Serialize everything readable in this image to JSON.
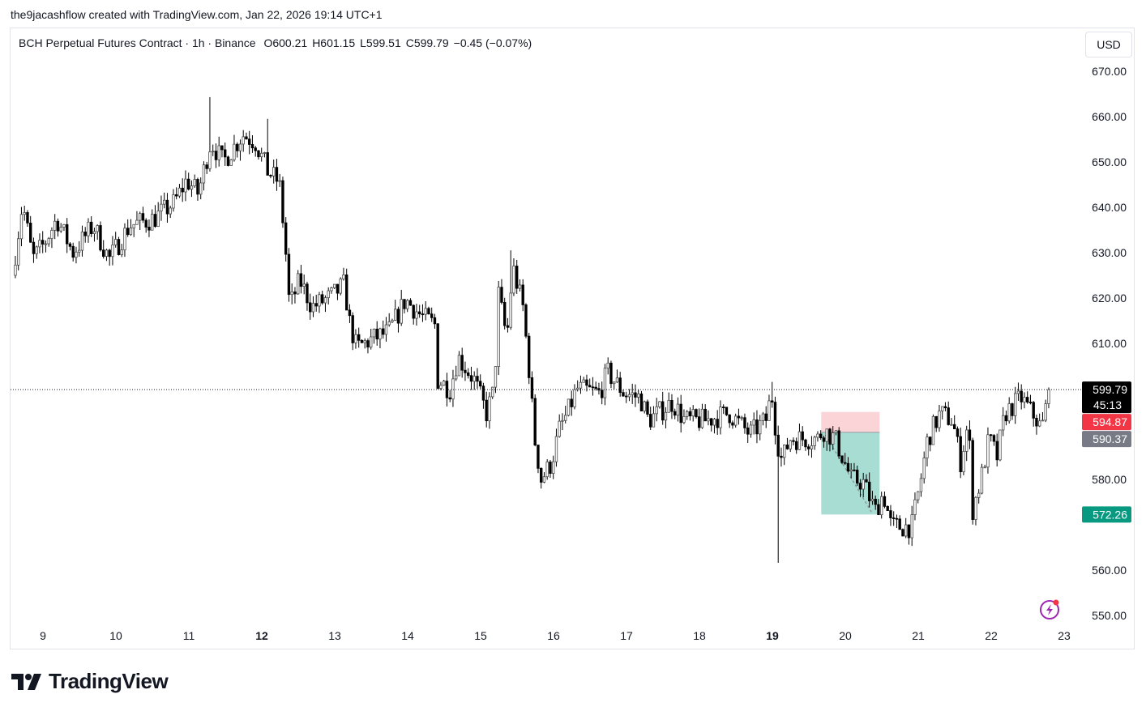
{
  "credit": "the9jacashflow created with TradingView.com, Jan 22, 2026 19:14 UTC+1",
  "legend": {
    "symbol": "BCH Perpetual Futures Contract · 1h · Binance",
    "open": "O600.21",
    "high": "H601.15",
    "low": "L599.51",
    "close": "C599.79",
    "change": "−0.45 (−0.07%)"
  },
  "currency_button": "USD",
  "brand": "TradingView",
  "icons": {
    "alert": "lightning-bolt-icon",
    "logo": "tradingview-logo-icon"
  },
  "chart_data": {
    "type": "candlestick",
    "interval": "1h",
    "x_unit": "day of January 2026",
    "ylim": [
      546,
      676
    ],
    "xlim": [
      8.55,
      23.35
    ],
    "y_ticks": [
      "670.00",
      "660.00",
      "650.00",
      "640.00",
      "630.00",
      "620.00",
      "610.00",
      "580.00",
      "560.00",
      "550.00"
    ],
    "y_tick_values": [
      670,
      660,
      650,
      640,
      630,
      620,
      610,
      580,
      560,
      550
    ],
    "x_ticks": [
      {
        "label": "9",
        "value": 9,
        "bold": false
      },
      {
        "label": "10",
        "value": 10,
        "bold": false
      },
      {
        "label": "11",
        "value": 11,
        "bold": false
      },
      {
        "label": "12",
        "value": 12,
        "bold": true
      },
      {
        "label": "13",
        "value": 13,
        "bold": false
      },
      {
        "label": "14",
        "value": 14,
        "bold": false
      },
      {
        "label": "15",
        "value": 15,
        "bold": false
      },
      {
        "label": "16",
        "value": 16,
        "bold": false
      },
      {
        "label": "17",
        "value": 17,
        "bold": false
      },
      {
        "label": "18",
        "value": 18,
        "bold": false
      },
      {
        "label": "19",
        "value": 19,
        "bold": true
      },
      {
        "label": "20",
        "value": 20,
        "bold": false
      },
      {
        "label": "21",
        "value": 21,
        "bold": false
      },
      {
        "label": "22",
        "value": 22,
        "bold": false
      },
      {
        "label": "23",
        "value": 23,
        "bold": false
      }
    ],
    "grid": false,
    "close_path": [
      [
        8.58,
        625
      ],
      [
        8.72,
        641
      ],
      [
        8.86,
        628.6
      ],
      [
        9.02,
        632
      ],
      [
        9.19,
        637.5
      ],
      [
        9.41,
        630
      ],
      [
        9.69,
        636
      ],
      [
        9.91,
        628.6
      ],
      [
        10.19,
        636
      ],
      [
        10.52,
        637.5
      ],
      [
        10.8,
        641
      ],
      [
        10.97,
        646
      ],
      [
        11.13,
        643
      ],
      [
        11.3,
        654.5
      ],
      [
        11.47,
        650
      ],
      [
        11.74,
        656
      ],
      [
        11.91,
        654.5
      ],
      [
        12.08,
        648
      ],
      [
        12.24,
        645.5
      ],
      [
        12.32,
        632
      ],
      [
        12.38,
        618
      ],
      [
        12.52,
        624
      ],
      [
        12.69,
        618
      ],
      [
        12.97,
        620.5
      ],
      [
        13.13,
        623
      ],
      [
        13.21,
        614
      ],
      [
        13.3,
        609
      ],
      [
        13.52,
        611
      ],
      [
        13.74,
        612.5
      ],
      [
        13.97,
        619.6
      ],
      [
        14.19,
        616
      ],
      [
        14.38,
        614
      ],
      [
        14.41,
        602
      ],
      [
        14.58,
        600
      ],
      [
        14.69,
        607
      ],
      [
        14.91,
        602
      ],
      [
        15.08,
        594.6
      ],
      [
        15.19,
        600
      ],
      [
        15.24,
        621.4
      ],
      [
        15.36,
        611
      ],
      [
        15.44,
        627
      ],
      [
        15.58,
        618
      ],
      [
        15.66,
        605
      ],
      [
        15.74,
        589
      ],
      [
        15.83,
        580
      ],
      [
        15.97,
        583.6
      ],
      [
        16.08,
        591
      ],
      [
        16.19,
        594.6
      ],
      [
        16.32,
        600
      ],
      [
        16.63,
        599
      ],
      [
        16.74,
        603.6
      ],
      [
        16.97,
        599
      ],
      [
        17.19,
        598
      ],
      [
        17.3,
        593
      ],
      [
        17.63,
        597
      ],
      [
        17.8,
        593
      ],
      [
        18.08,
        593
      ],
      [
        18.41,
        594.6
      ],
      [
        18.69,
        590
      ],
      [
        18.91,
        593
      ],
      [
        18.99,
        599
      ],
      [
        19.06,
        589
      ],
      [
        19.13,
        584
      ],
      [
        19.24,
        589
      ],
      [
        19.63,
        589
      ],
      [
        19.69,
        591
      ],
      [
        19.86,
        589
      ],
      [
        19.97,
        584.6
      ],
      [
        20.08,
        580
      ],
      [
        20.24,
        579.5
      ],
      [
        20.41,
        573
      ],
      [
        20.52,
        577
      ],
      [
        20.63,
        569.6
      ],
      [
        20.91,
        569.6
      ],
      [
        21.02,
        578.6
      ],
      [
        21.13,
        589
      ],
      [
        21.3,
        594.6
      ],
      [
        21.47,
        593
      ],
      [
        21.58,
        584
      ],
      [
        21.69,
        593
      ],
      [
        21.74,
        573
      ],
      [
        21.86,
        580
      ],
      [
        21.97,
        589
      ],
      [
        22.08,
        585
      ],
      [
        22.19,
        594.6
      ],
      [
        22.41,
        598
      ],
      [
        22.63,
        593
      ],
      [
        22.69,
        591
      ],
      [
        22.8,
        599.79
      ]
    ],
    "extreme_wicks": [
      [
        11.3,
        664.3
      ],
      [
        12.08,
        659.5
      ],
      [
        15.43,
        630.5
      ],
      [
        19.06,
        561.6
      ],
      [
        16.72,
        605.5
      ],
      [
        18.99,
        601.5
      ]
    ],
    "current_price": {
      "value": 599.79,
      "label": "599.79",
      "countdown": "45:13",
      "color": "#000000"
    },
    "short_position": {
      "start_day": 19.67,
      "end_day": 20.47,
      "entry": {
        "value": 590.37,
        "label": "590.37",
        "color": "#787b86"
      },
      "stop": {
        "value": 594.87,
        "label": "594.87",
        "color": "#f23645"
      },
      "target": {
        "value": 572.26,
        "label": "572.26",
        "color": "#089981"
      },
      "stop_zone_color": "#fbd4d8",
      "target_zone_color": "#a8ddd4"
    },
    "colors": {
      "up_fill": "#ffffff",
      "down_fill": "#000000",
      "outline": "#000000"
    }
  }
}
